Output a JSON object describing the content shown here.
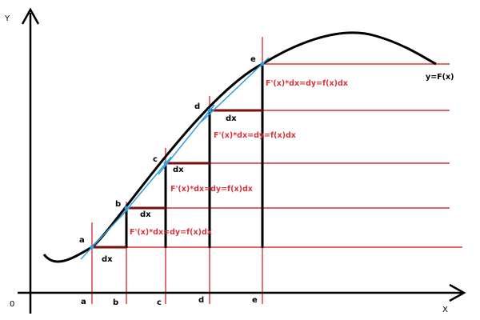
{
  "axes": {
    "y_label": "Y",
    "x_label": "X",
    "origin_label": "0"
  },
  "curve_label": "y=F(x)",
  "points": [
    {
      "label": "a",
      "x_tick": "a",
      "dx_label": "dx"
    },
    {
      "label": "b",
      "x_tick": "b",
      "dx_label": "dx"
    },
    {
      "label": "c",
      "x_tick": "c",
      "dx_label": "dx"
    },
    {
      "label": "d",
      "x_tick": "d",
      "dx_label": "dx"
    },
    {
      "label": "e",
      "x_tick": "e"
    }
  ],
  "equations": [
    "F'(x)*dx=dy=f(x)dx",
    "F'(x)*dx=dy=f(x)dx",
    "F'(x)*dx=dy=f(x)dx",
    "F'(x)*dx=dy=f(x)dx"
  ],
  "colors": {
    "axis": "#000000",
    "curve": "#000000",
    "guide": "#d9343a",
    "step": "#7a0d0d",
    "tangent": "#2f9fe0",
    "equation": "#d9343a"
  }
}
